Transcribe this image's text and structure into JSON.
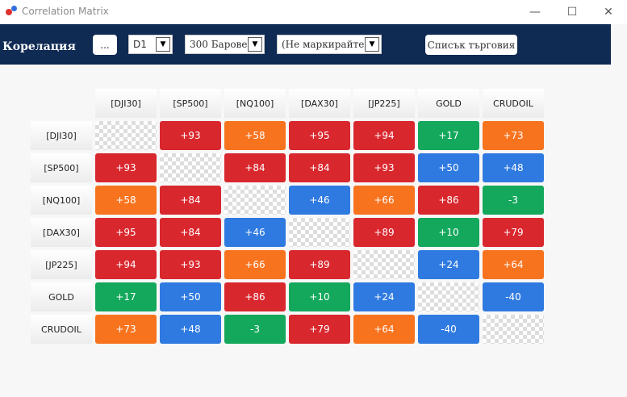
{
  "window": {
    "title": "Correlation Matrix",
    "minimize": "—",
    "maximize": "☐",
    "close": "✕"
  },
  "toolbar": {
    "brand": "Корелация",
    "menu_button": "...",
    "timeframe": "D1",
    "bars": "300 Барове",
    "marker": "(Не маркирайте)",
    "trade_list": "Списък търговия"
  },
  "colors": {
    "strong_positive": "#d9272e",
    "medium_positive": "#f7731e",
    "weak": "#14a85c",
    "negative_or_low": "#2f7ae0",
    "toolbar_bg": "#0f2a53"
  },
  "matrix": {
    "columns": [
      "[DJI30]",
      "[SP500]",
      "[NQ100]",
      "[DAX30]",
      "[JP225]",
      "GOLD",
      "CRUDOIL"
    ],
    "rows": [
      {
        "label": "[DJI30]",
        "cells": [
          {
            "text": "",
            "color": "diag"
          },
          {
            "text": "+93",
            "color": "red"
          },
          {
            "text": "+58",
            "color": "orange"
          },
          {
            "text": "+95",
            "color": "red"
          },
          {
            "text": "+94",
            "color": "red"
          },
          {
            "text": "+17",
            "color": "green"
          },
          {
            "text": "+73",
            "color": "orange"
          }
        ]
      },
      {
        "label": "[SP500]",
        "cells": [
          {
            "text": "+93",
            "color": "red"
          },
          {
            "text": "",
            "color": "diag"
          },
          {
            "text": "+84",
            "color": "red"
          },
          {
            "text": "+84",
            "color": "red"
          },
          {
            "text": "+93",
            "color": "red"
          },
          {
            "text": "+50",
            "color": "blue"
          },
          {
            "text": "+48",
            "color": "blue"
          }
        ]
      },
      {
        "label": "[NQ100]",
        "cells": [
          {
            "text": "+58",
            "color": "orange"
          },
          {
            "text": "+84",
            "color": "red"
          },
          {
            "text": "",
            "color": "diag"
          },
          {
            "text": "+46",
            "color": "blue"
          },
          {
            "text": "+66",
            "color": "orange"
          },
          {
            "text": "+86",
            "color": "red"
          },
          {
            "text": "-3",
            "color": "green"
          }
        ]
      },
      {
        "label": "[DAX30]",
        "cells": [
          {
            "text": "+95",
            "color": "red"
          },
          {
            "text": "+84",
            "color": "red"
          },
          {
            "text": "+46",
            "color": "blue"
          },
          {
            "text": "",
            "color": "diag"
          },
          {
            "text": "+89",
            "color": "red"
          },
          {
            "text": "+10",
            "color": "green"
          },
          {
            "text": "+79",
            "color": "red"
          }
        ]
      },
      {
        "label": "[JP225]",
        "cells": [
          {
            "text": "+94",
            "color": "red"
          },
          {
            "text": "+93",
            "color": "red"
          },
          {
            "text": "+66",
            "color": "orange"
          },
          {
            "text": "+89",
            "color": "red"
          },
          {
            "text": "",
            "color": "diag"
          },
          {
            "text": "+24",
            "color": "blue"
          },
          {
            "text": "+64",
            "color": "orange"
          }
        ]
      },
      {
        "label": "GOLD",
        "cells": [
          {
            "text": "+17",
            "color": "green"
          },
          {
            "text": "+50",
            "color": "blue"
          },
          {
            "text": "+86",
            "color": "red"
          },
          {
            "text": "+10",
            "color": "green"
          },
          {
            "text": "+24",
            "color": "blue"
          },
          {
            "text": "",
            "color": "diag"
          },
          {
            "text": "-40",
            "color": "blue"
          }
        ]
      },
      {
        "label": "CRUDOIL",
        "cells": [
          {
            "text": "+73",
            "color": "orange"
          },
          {
            "text": "+48",
            "color": "blue"
          },
          {
            "text": "-3",
            "color": "green"
          },
          {
            "text": "+79",
            "color": "red"
          },
          {
            "text": "+64",
            "color": "orange"
          },
          {
            "text": "-40",
            "color": "blue"
          },
          {
            "text": "",
            "color": "diag"
          }
        ]
      }
    ]
  }
}
